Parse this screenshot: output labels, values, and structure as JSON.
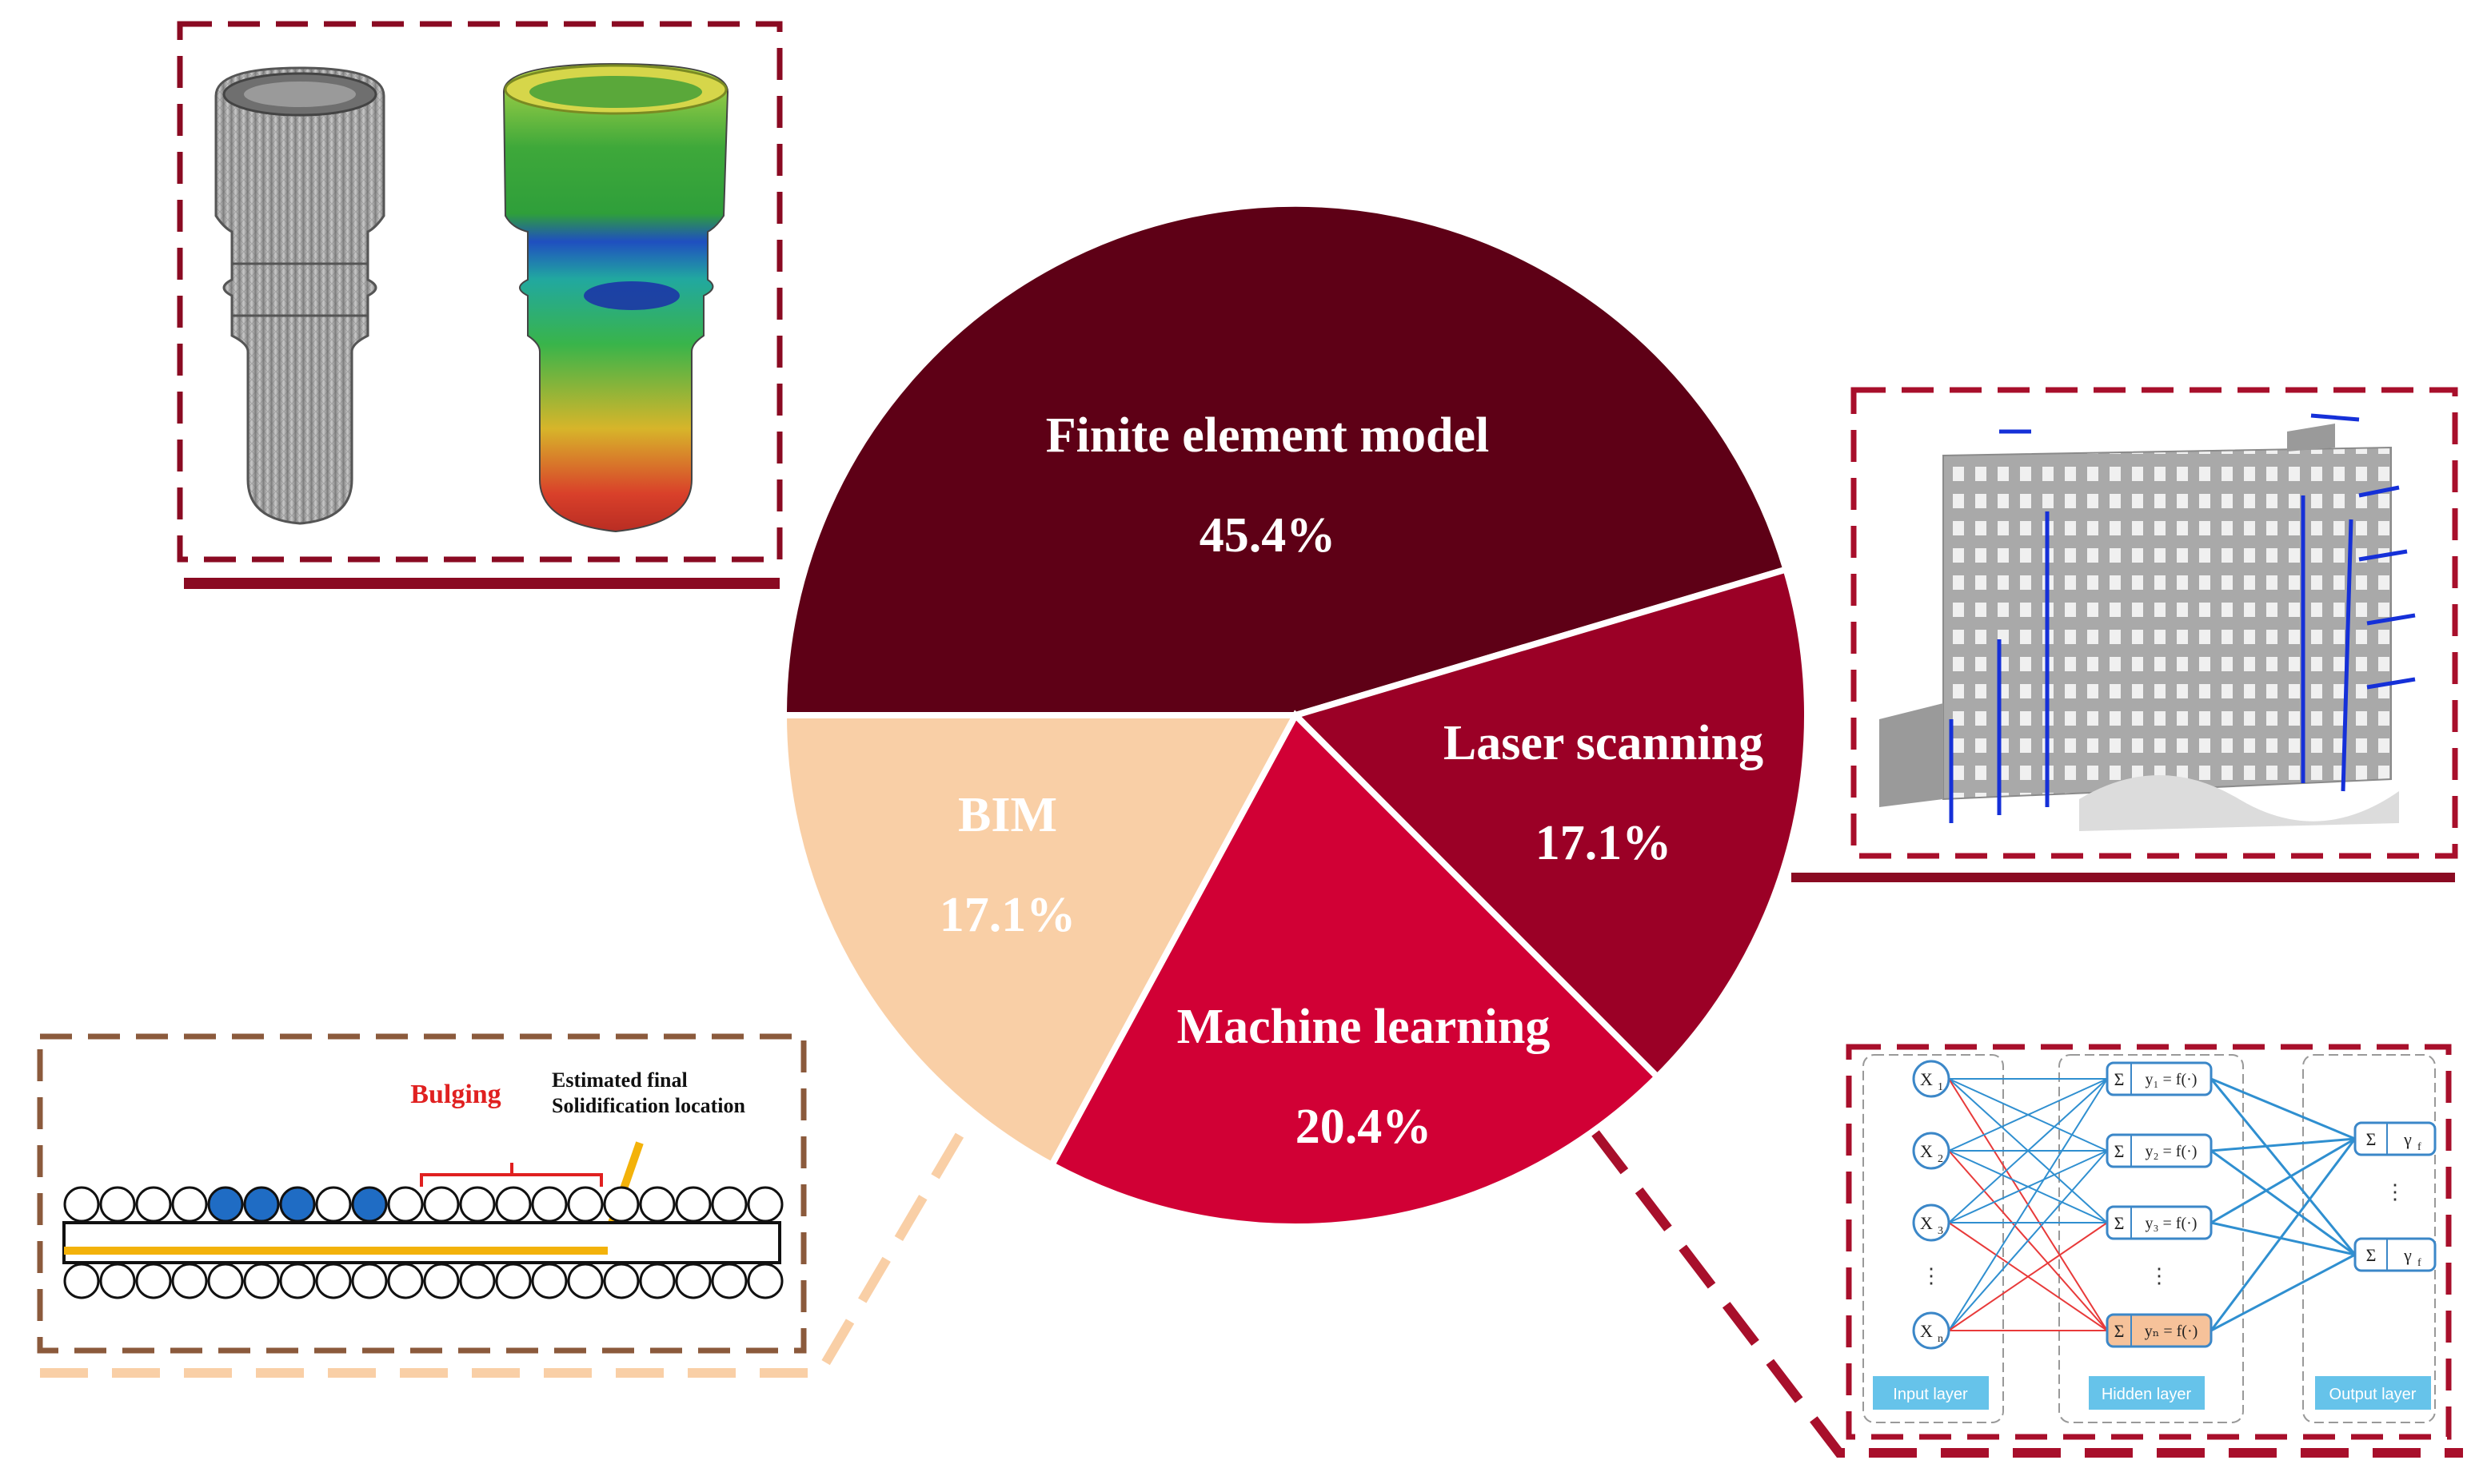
{
  "chart_data": {
    "type": "pie",
    "title": "",
    "slices": [
      {
        "label": "Finite element model",
        "value": 45.4,
        "value_label": "45.4%",
        "color": "#5e0016",
        "text_color": "#ffffff"
      },
      {
        "label": "Laser scanning",
        "value": 17.1,
        "value_label": "17.1%",
        "color": "#9b0026",
        "text_color": "#ffffff"
      },
      {
        "label": "Machine learning",
        "value": 20.4,
        "value_label": "20.4%",
        "color": "#d10035",
        "text_color": "#ffffff"
      },
      {
        "label": "BIM",
        "value": 17.1,
        "value_label": "17.1%",
        "color": "#f9cfa6",
        "text_color": "#ffffff"
      }
    ]
  },
  "callouts": {
    "bulging": {
      "title": "Bulging",
      "annotation_line1": "Estimated final",
      "annotation_line2": "Solidification location",
      "border_color": "#8b5a3c",
      "accent_color": "#f3b20a"
    },
    "neural_network": {
      "inputs": [
        "X",
        "X",
        "X",
        "X"
      ],
      "input_subscripts": [
        "1",
        "2",
        "3",
        "n"
      ],
      "hidden_sum": "Σ",
      "hidden_nodes": [
        "y₁ = f(·)",
        "y₂ = f(·)",
        "y₃ = f(·)",
        "yₙ = f(·)"
      ],
      "output_nodes": [
        "γ",
        "γ"
      ],
      "output_subscripts": [
        "f",
        "f"
      ],
      "layer_labels": [
        "Input layer",
        "Hidden layer",
        "Output layer"
      ],
      "line_blue": "#2f8fd0",
      "line_red": "#e83a3a",
      "label_bg": "#66c3ea"
    },
    "frame_color": "#a80f2b",
    "underline_color": "#8a0a22"
  }
}
